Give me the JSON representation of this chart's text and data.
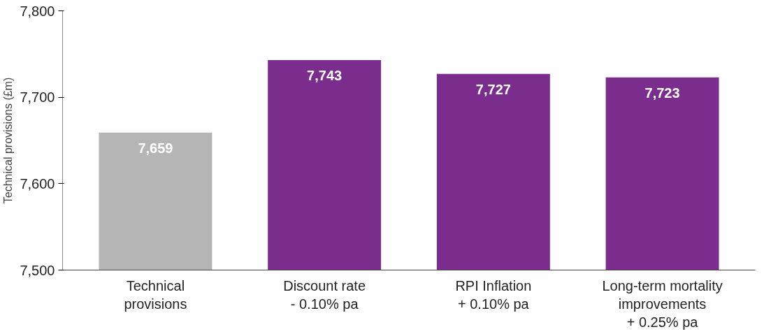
{
  "chart_data": {
    "type": "bar",
    "ylabel": "Technical provisions (£m)",
    "categories": [
      "Technical\nprovisions",
      "Discount rate\n- 0.10% pa",
      "RPI Inflation\n+ 0.10% pa",
      "Long-term mortality\nimprovements\n+ 0.25% pa"
    ],
    "values": [
      7659,
      7743,
      7727,
      7723
    ],
    "colors": [
      "#b5b5b5",
      "#7b2d8e",
      "#7b2d8e",
      "#7b2d8e"
    ],
    "value_labels": [
      "7,659",
      "7,743",
      "7,727",
      "7,723"
    ],
    "ylim": [
      7500,
      7800
    ],
    "yticks": [
      {
        "value": 7500,
        "label": "7,500"
      },
      {
        "value": 7600,
        "label": "7,600"
      },
      {
        "value": 7700,
        "label": "7,700"
      },
      {
        "value": 7800,
        "label": "7,800"
      }
    ],
    "grid": false
  }
}
